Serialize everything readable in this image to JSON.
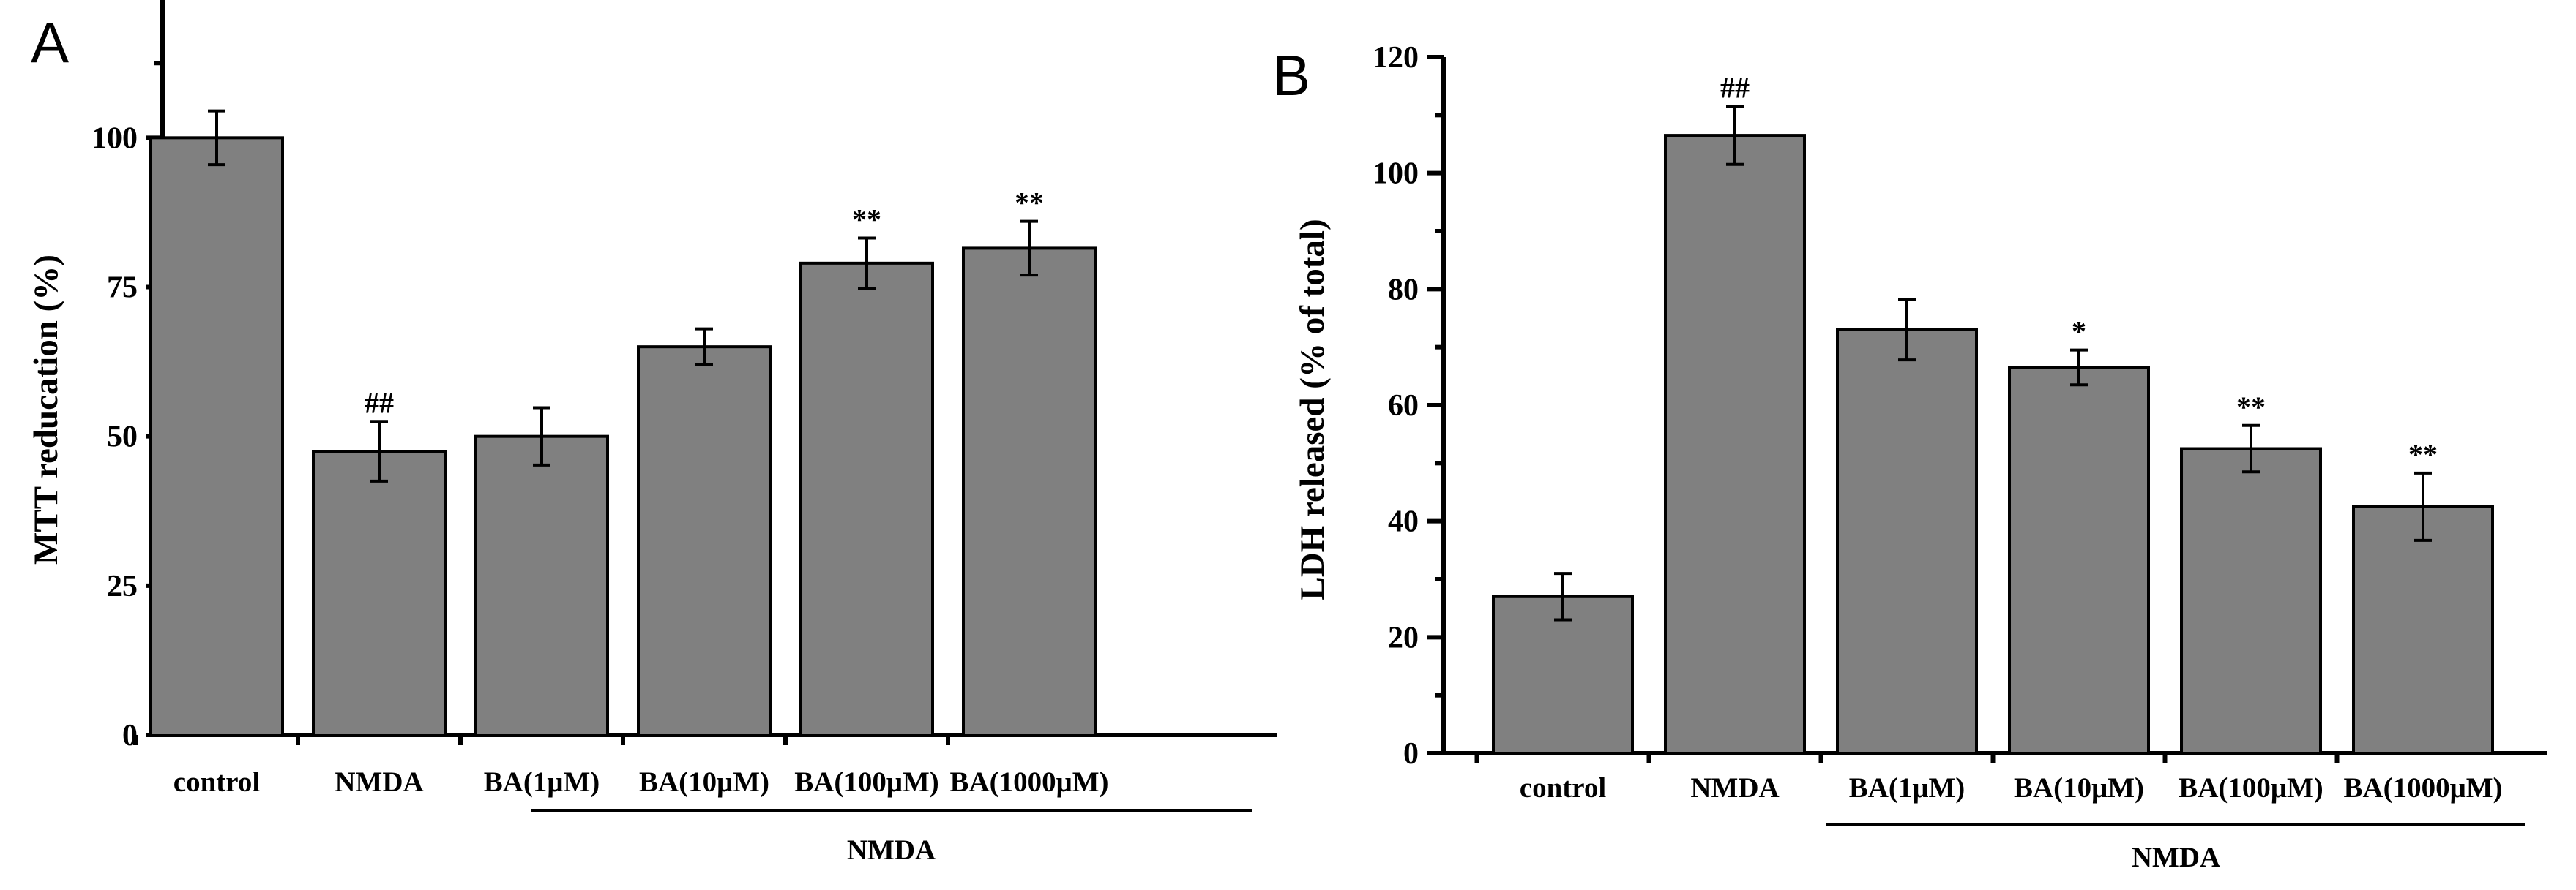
{
  "chart_data": [
    {
      "panel": "A",
      "type": "bar",
      "ylabel": "MTT reducation (%)",
      "ylim": [
        0,
        120
      ],
      "yticks": [
        0,
        25,
        50,
        75,
        100
      ],
      "yticklabels": [
        "0",
        "25",
        "50",
        "75",
        "100"
      ],
      "categories": [
        "control",
        "NMDA",
        "BA(1μM)",
        "BA(10μM)",
        "BA(100μM)",
        "BA(1000μM)"
      ],
      "values": [
        100,
        47.5,
        50,
        65,
        79,
        81.5
      ],
      "errors": [
        4.5,
        5,
        4.8,
        3,
        4.2,
        4.5
      ],
      "annotations": [
        "",
        "##",
        "",
        "",
        "**",
        "**"
      ],
      "group_label": "NMDA",
      "group_span": [
        2,
        5
      ]
    },
    {
      "panel": "B",
      "type": "bar",
      "ylabel": "LDH released (% of total)",
      "ylim": [
        0,
        120
      ],
      "yticks": [
        0,
        20,
        40,
        60,
        80,
        100,
        120
      ],
      "yticklabels": [
        "0",
        "20",
        "40",
        "60",
        "80",
        "100",
        "120"
      ],
      "categories": [
        "control",
        "NMDA",
        "BA(1μM)",
        "BA(10μM)",
        "BA(100μM)",
        "BA(1000μM)"
      ],
      "values": [
        27,
        106.5,
        73,
        66.5,
        52.5,
        42.5
      ],
      "errors": [
        4,
        5,
        5.2,
        3,
        4,
        5.8
      ],
      "annotations": [
        "",
        "##",
        "",
        "*",
        "**",
        "**"
      ],
      "group_label": "NMDA",
      "group_span": [
        2,
        5
      ]
    }
  ]
}
